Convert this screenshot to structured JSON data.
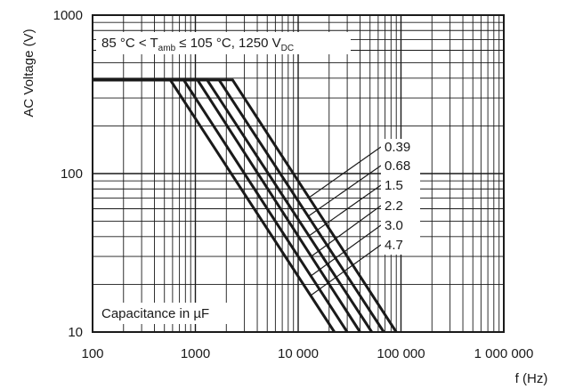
{
  "chart_data": {
    "type": "line",
    "xscale": "log",
    "yscale": "log",
    "xlim": [
      100,
      1000000
    ],
    "ylim": [
      10,
      1000
    ],
    "x_ticks": [
      {
        "value": 100,
        "label": "100"
      },
      {
        "value": 1000,
        "label": "1000"
      },
      {
        "value": 10000,
        "label": "10 000"
      },
      {
        "value": 100000,
        "label": "100 000"
      },
      {
        "value": 1000000,
        "label": "1 000 000"
      }
    ],
    "y_ticks": [
      {
        "value": 10,
        "label": "10"
      },
      {
        "value": 100,
        "label": "100"
      },
      {
        "value": 1000,
        "label": "1000"
      }
    ],
    "xlabel": "f (Hz)",
    "ylabel": "AC Voltage (V)",
    "condition": {
      "pre": "85 °C < T",
      "sub1": "amb",
      "mid": " ≤ 105 °C, 1250 V",
      "sub2": "DC"
    },
    "legend_title": "Capacitance in µF",
    "grid": true,
    "series": [
      {
        "name": "0.39",
        "points": [
          [
            100,
            390
          ],
          [
            2300,
            390
          ],
          [
            90000,
            10
          ]
        ]
      },
      {
        "name": "0.68",
        "points": [
          [
            100,
            390
          ],
          [
            1700,
            390
          ],
          [
            68000,
            10
          ]
        ]
      },
      {
        "name": "1.5",
        "points": [
          [
            100,
            390
          ],
          [
            1300,
            390
          ],
          [
            52000,
            10
          ]
        ]
      },
      {
        "name": "2.2",
        "points": [
          [
            100,
            390
          ],
          [
            1050,
            390
          ],
          [
            40000,
            10
          ]
        ]
      },
      {
        "name": "3.0",
        "points": [
          [
            100,
            390
          ],
          [
            770,
            390
          ],
          [
            30000,
            10
          ]
        ]
      },
      {
        "name": "4.7",
        "points": [
          [
            100,
            390
          ],
          [
            570,
            390
          ],
          [
            22500,
            10
          ]
        ]
      }
    ],
    "line_color": "#1a1a1a",
    "grid_color": "#1a1a1a"
  }
}
